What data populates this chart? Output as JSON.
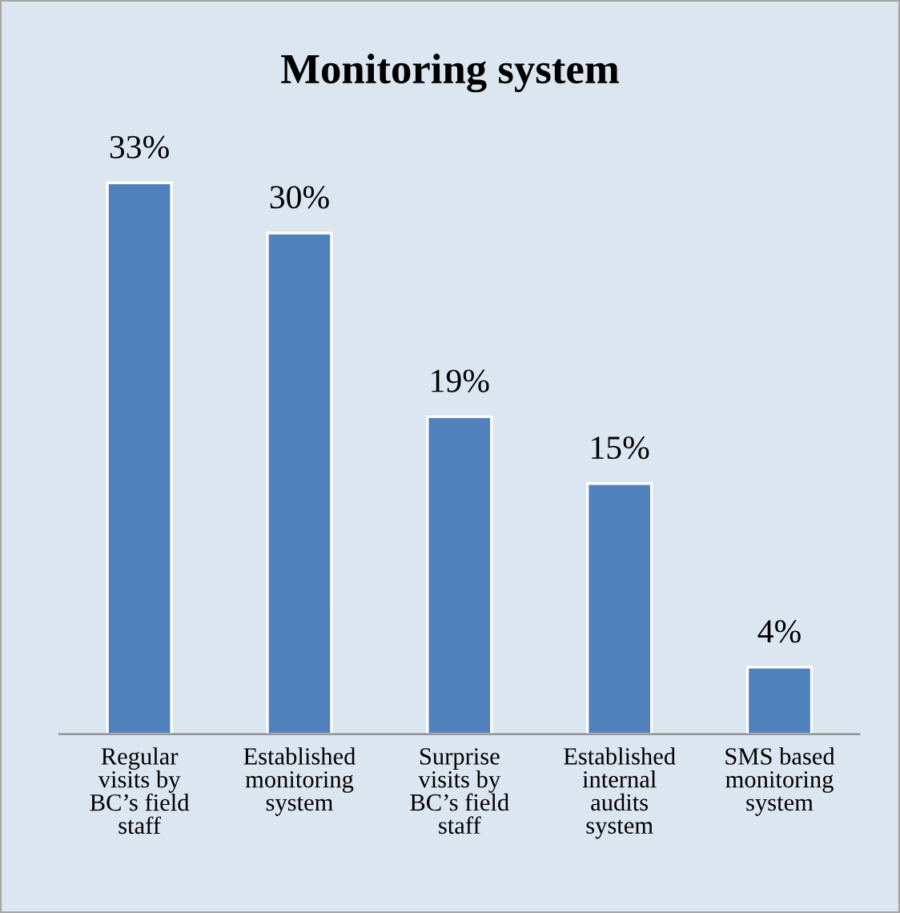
{
  "chart_data": {
    "type": "bar",
    "title": "Monitoring system",
    "categories": [
      "Regular\nvisits by\nBC’s field\nstaff",
      "Established\nmonitoring\nsystem",
      "Surprise\nvisits by\nBC’s field\nstaff",
      "Established\ninternal\naudits\nsystem",
      "SMS based\nmonitoring\nsystem"
    ],
    "values": [
      33,
      30,
      19,
      15,
      4
    ],
    "value_labels": [
      "33%",
      "30%",
      "19%",
      "15%",
      "4%"
    ],
    "color": "#4f81bd",
    "grid": false,
    "legend": false
  }
}
